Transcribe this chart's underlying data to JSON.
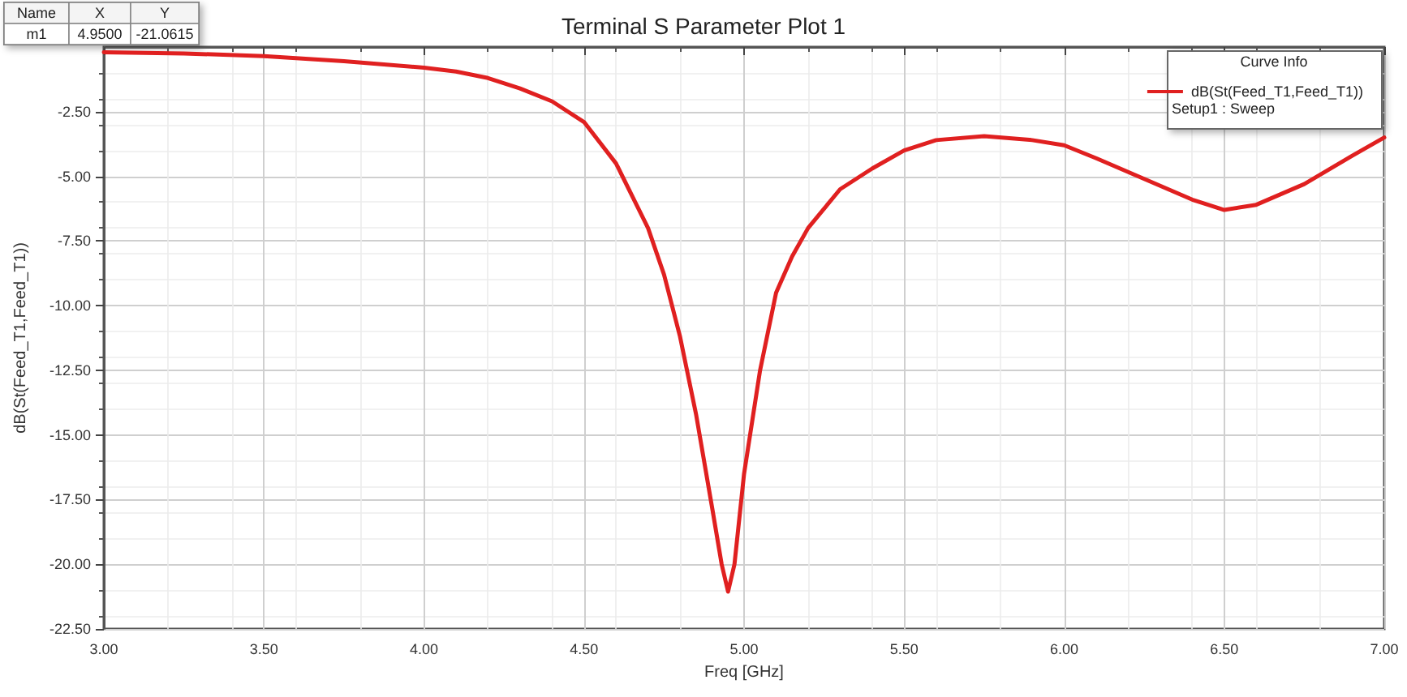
{
  "chart_data": {
    "type": "line",
    "title": "Terminal S Parameter Plot 1",
    "xlabel": "Freq [GHz]",
    "ylabel": "dB(St(Feed_T1,Feed_T1))",
    "legend_title": "Curve Info",
    "annotations": [
      "Name",
      "X",
      "Y",
      "m1",
      "4.9500",
      "-21.0615",
      "Setup1 : Sweep"
    ],
    "x": [
      3.0,
      3.25,
      3.5,
      3.75,
      4.0,
      4.1,
      4.2,
      4.3,
      4.4,
      4.5,
      4.6,
      4.7,
      4.75,
      4.8,
      4.85,
      4.9,
      4.93,
      4.95,
      4.97,
      5.0,
      5.05,
      5.1,
      5.15,
      5.2,
      5.3,
      5.4,
      5.5,
      5.6,
      5.75,
      5.9,
      6.0,
      6.1,
      6.25,
      6.4,
      6.5,
      6.6,
      6.75,
      6.9,
      7.0
    ],
    "series": [
      {
        "name": "dB(St(Feed_T1,Feed_T1))",
        "color": "#e02020",
        "values": [
          -0.2,
          -0.25,
          -0.35,
          -0.55,
          -0.8,
          -0.95,
          -1.2,
          -1.6,
          -2.1,
          -2.9,
          -4.5,
          -7.0,
          -8.8,
          -11.2,
          -14.2,
          -17.8,
          -20.0,
          -21.06,
          -20.0,
          -16.5,
          -12.5,
          -9.5,
          -8.1,
          -7.0,
          -5.5,
          -4.7,
          -4.0,
          -3.6,
          -3.45,
          -3.6,
          -3.8,
          -4.3,
          -5.1,
          -5.9,
          -6.3,
          -6.1,
          -5.3,
          -4.2,
          -3.5
        ]
      }
    ],
    "xlim": [
      3.0,
      7.0
    ],
    "xticks": [
      {
        "value": 3.0,
        "label": "3.00"
      },
      {
        "value": 3.5,
        "label": "3.50"
      },
      {
        "value": 4.0,
        "label": "4.00"
      },
      {
        "value": 4.5,
        "label": "4.50"
      },
      {
        "value": 5.0,
        "label": "5.00"
      },
      {
        "value": 5.5,
        "label": "5.50"
      },
      {
        "value": 6.0,
        "label": "6.00"
      },
      {
        "value": 6.5,
        "label": "6.50"
      },
      {
        "value": 7.0,
        "label": "7.00"
      }
    ],
    "ylim": [
      -22.5,
      0
    ],
    "yticks": [
      {
        "value": -22.5,
        "label": "-22.50"
      },
      {
        "value": -20,
        "label": "-20.00"
      },
      {
        "value": -17.5,
        "label": "-17.50"
      },
      {
        "value": -15,
        "label": "-15.00"
      },
      {
        "value": -12.5,
        "label": "-12.50"
      },
      {
        "value": -10,
        "label": "-10.00"
      },
      {
        "value": -7.5,
        "label": "-7.50"
      },
      {
        "value": -5,
        "label": "-5.00"
      },
      {
        "value": -2.5,
        "label": "-2.50"
      }
    ],
    "grid": true,
    "legend": "top right",
    "marker": "none",
    "line_style": "solid"
  }
}
